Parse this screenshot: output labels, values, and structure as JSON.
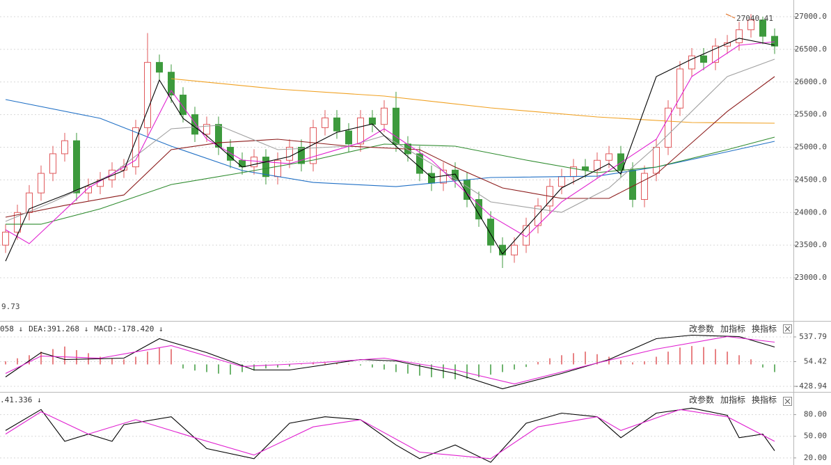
{
  "chart_data": [
    {
      "type": "candlestick",
      "up_color": "#e0585b",
      "down_color": "#3d9a3d",
      "ylim": [
        22350,
        27256
      ],
      "yticks": [
        {
          "value": 27000,
          "label": "27000.0"
        },
        {
          "value": 26500,
          "label": "26500.0"
        },
        {
          "value": 26000,
          "label": "26000.0"
        },
        {
          "value": 25500,
          "label": "25500.0"
        },
        {
          "value": 25000,
          "label": "25000.0"
        },
        {
          "value": 24500,
          "label": "24500.0"
        },
        {
          "value": 24000,
          "label": "24000.0"
        },
        {
          "value": 23500,
          "label": "23500.0"
        },
        {
          "value": 23000,
          "label": "23000.0"
        }
      ],
      "grid": true,
      "open": [
        23500,
        23700,
        24000,
        24300,
        24600,
        24900,
        25100,
        24300,
        24400,
        24500,
        24650,
        24700,
        25300,
        26300,
        26150,
        25800,
        25500,
        25200,
        25350,
        25000,
        24800,
        24700,
        24850,
        24550,
        24800,
        25000,
        24750,
        25300,
        25450,
        25250,
        25050,
        25450,
        25350,
        25600,
        25050,
        24900,
        24600,
        24450,
        24650,
        24500,
        24200,
        23900,
        23500,
        23350,
        23500,
        23800,
        24100,
        24400,
        24550,
        24700,
        24650,
        24800,
        24900,
        24650,
        24200,
        24600,
        25000,
        25600,
        26200,
        26400,
        26300,
        26550,
        26600,
        26800,
        26950,
        26700
      ],
      "high": [
        23820,
        24120,
        24420,
        24720,
        25020,
        25220,
        25220,
        24520,
        24620,
        24770,
        24820,
        25420,
        26750,
        26420,
        26270,
        25920,
        25620,
        25470,
        25470,
        25120,
        24920,
        24970,
        24970,
        24920,
        25120,
        25120,
        25420,
        25570,
        25570,
        25370,
        25570,
        25570,
        25720,
        25850,
        25170,
        25020,
        24720,
        24770,
        24770,
        24620,
        24320,
        24020,
        23620,
        23620,
        23920,
        24220,
        24520,
        24670,
        24820,
        24820,
        24920,
        25020,
        25020,
        24770,
        24720,
        25120,
        25720,
        26320,
        26520,
        26520,
        26670,
        26720,
        26920,
        27040.41,
        27000,
        26820
      ],
      "low": [
        23380,
        23580,
        23880,
        24180,
        24480,
        24780,
        24180,
        24180,
        24280,
        24380,
        24530,
        24580,
        25180,
        26030,
        25680,
        25380,
        25080,
        25080,
        24880,
        24680,
        24580,
        24580,
        24430,
        24430,
        24680,
        24630,
        24630,
        25180,
        25130,
        24930,
        24930,
        25230,
        25230,
        24930,
        24780,
        24480,
        24330,
        24330,
        24380,
        24080,
        23780,
        23380,
        23150,
        23230,
        23380,
        23680,
        23980,
        24280,
        24430,
        24530,
        24530,
        24680,
        24530,
        24080,
        24080,
        24480,
        24880,
        25480,
        26080,
        26180,
        26180,
        26430,
        26480,
        26680,
        26580,
        26430
      ],
      "close": [
        23700,
        24000,
        24300,
        24600,
        24900,
        25100,
        24300,
        24400,
        24500,
        24650,
        24700,
        25300,
        26300,
        26150,
        25800,
        25500,
        25200,
        25350,
        25000,
        24800,
        24700,
        24850,
        24550,
        24800,
        25000,
        24750,
        25300,
        25450,
        25250,
        25050,
        25450,
        25350,
        25600,
        25050,
        24900,
        24600,
        24450,
        24650,
        24500,
        24200,
        23900,
        23500,
        23350,
        23500,
        23800,
        24100,
        24400,
        24550,
        24700,
        24650,
        24800,
        24900,
        24650,
        24200,
        24600,
        25000,
        25600,
        26200,
        26400,
        26300,
        26550,
        26600,
        26800,
        26950,
        26700,
        26550
      ],
      "lines": [
        {
          "color": "#1f6fc5",
          "x": [
            0,
            8,
            14,
            20,
            26,
            33,
            41,
            50,
            55,
            61,
            65
          ],
          "values": [
            25731,
            25443,
            25016,
            24643,
            24461,
            24397,
            24536,
            24557,
            24696,
            24931,
            25091
          ]
        },
        {
          "color": "#f0a020",
          "x": [
            14,
            23,
            32,
            41,
            50,
            58,
            65
          ],
          "values": [
            26051,
            25891,
            25784,
            25603,
            25464,
            25379,
            25368
          ]
        },
        {
          "color": "#2e8b2e",
          "x": [
            0,
            3,
            8,
            14,
            20,
            26,
            32,
            38,
            44,
            50,
            55,
            61,
            65
          ],
          "values": [
            23821,
            23821,
            24056,
            24429,
            24611,
            24803,
            25048,
            25016,
            24803,
            24611,
            24696,
            24963,
            25155
          ]
        },
        {
          "color": "#8b1a1a",
          "x": [
            0,
            5,
            10,
            14,
            18,
            23,
            29,
            35,
            38,
            42,
            47,
            51,
            55,
            61,
            65
          ],
          "values": [
            23928,
            24109,
            24269,
            24963,
            25069,
            25123,
            25016,
            24963,
            24696,
            24376,
            24216,
            24216,
            24589,
            25549,
            26083
          ]
        },
        {
          "color": "#a0a0a0",
          "x": [
            0,
            4,
            9,
            14,
            18,
            23,
            29,
            32,
            36,
            41,
            47,
            51,
            55,
            61,
            65
          ],
          "values": [
            23864,
            24163,
            24589,
            25283,
            25336,
            24963,
            25016,
            25176,
            24749,
            24163,
            24003,
            24376,
            25016,
            26083,
            26349
          ]
        },
        {
          "color": "#e020d0",
          "x": [
            0,
            2,
            7,
            11,
            14,
            17,
            20,
            24,
            30,
            32,
            36,
            41,
            44,
            47,
            51,
            55,
            58,
            62,
            65
          ],
          "values": [
            23736,
            23523,
            24376,
            24803,
            25869,
            25123,
            24803,
            24749,
            25069,
            25283,
            24803,
            23949,
            23629,
            24163,
            24643,
            25123,
            26083,
            26563,
            26616
          ]
        },
        {
          "color": "#000000",
          "x": [
            0,
            2,
            5,
            10,
            13,
            15,
            17,
            20,
            24,
            28,
            31,
            32,
            36,
            38,
            42,
            47,
            51,
            52,
            55,
            58,
            62,
            65
          ],
          "values": [
            23256,
            24056,
            24269,
            24643,
            26029,
            25443,
            25176,
            24696,
            24856,
            25229,
            25357,
            25176,
            24536,
            24589,
            23363,
            24376,
            24749,
            24589,
            26083,
            26349,
            26669,
            26563
          ]
        }
      ],
      "annotations": [
        {
          "text": "27040.41",
          "color": "#e06a1a"
        },
        {
          "text": "9.73",
          "color": "#e06a1a"
        }
      ]
    },
    {
      "type": "macd",
      "up_color": "#e0585b",
      "down_color": "#3d9a3d",
      "ylim": [
        -524.3,
        823.8
      ],
      "yticks": [
        537.79,
        54.42,
        -428.94
      ],
      "grid": true,
      "legend": [
        {
          "text": "058 ↓",
          "color": "#000000"
        },
        {
          "text": "DEA:391.268 ↓",
          "color": "#e020d0"
        },
        {
          "text": "MACD:-178.420 ↓",
          "color": "#777777"
        }
      ],
      "buttons": [
        "改参数",
        "加指标",
        "换指标"
      ],
      "histogram": [
        60,
        120,
        180,
        250,
        300,
        350,
        280,
        220,
        150,
        120,
        100,
        150,
        250,
        330,
        300,
        -80,
        -120,
        -150,
        -180,
        -200,
        -150,
        -120,
        -80,
        -60,
        -40,
        20,
        40,
        30,
        20,
        10,
        -20,
        -60,
        -100,
        -150,
        -180,
        -220,
        -250,
        -270,
        -290,
        -280,
        -250,
        -200,
        -150,
        -100,
        -50,
        50,
        120,
        180,
        220,
        250,
        200,
        150,
        80,
        40,
        60,
        150,
        250,
        330,
        360,
        340,
        300,
        250,
        180,
        100,
        -60,
        -150
      ],
      "lines": [
        {
          "color": "#000000",
          "x": [
            0,
            3,
            5,
            10,
            13,
            17,
            21,
            24,
            30,
            33,
            38,
            42,
            47,
            51,
            55,
            58,
            62,
            65
          ],
          "values": [
            -245,
            231,
            95,
            123,
            504,
            231,
            -109,
            -109,
            95,
            68,
            -177,
            -477,
            -177,
            95,
            504,
            572,
            545,
            340
          ]
        },
        {
          "color": "#e020d0",
          "x": [
            0,
            3,
            8,
            14,
            20,
            26,
            32,
            38,
            43,
            50,
            55,
            61,
            65
          ],
          "values": [
            -177,
            163,
            123,
            368,
            -41,
            27,
            123,
            -109,
            -381,
            27,
            300,
            545,
            436
          ]
        }
      ]
    },
    {
      "type": "kdj",
      "ylim": [
        10.2,
        109.5
      ],
      "yticks": [
        {
          "value": 80,
          "label": "80.00"
        },
        {
          "value": 50,
          "label": "50.00"
        },
        {
          "value": 20,
          "label": "20.00"
        }
      ],
      "grid": true,
      "legend": [
        {
          "text": ".41.336 ↓",
          "color": "#e020d0"
        }
      ],
      "buttons": [
        "改参数",
        "加指标",
        "换指标"
      ],
      "lines": [
        {
          "color": "#000000",
          "x": [
            0,
            3,
            5,
            7,
            9,
            10,
            14,
            17,
            21,
            24,
            27,
            30,
            33,
            35,
            38,
            41,
            44,
            47,
            50,
            52,
            55,
            58,
            61,
            62,
            64,
            65
          ],
          "values": [
            58,
            87,
            43,
            53,
            43,
            66,
            77,
            33,
            19,
            68,
            77,
            73,
            38,
            19,
            38,
            14,
            68,
            82,
            77,
            48,
            82,
            89,
            79,
            48,
            53,
            30
          ]
        },
        {
          "color": "#e020d0",
          "x": [
            0,
            3,
            7,
            11,
            16,
            21,
            26,
            30,
            35,
            41,
            45,
            50,
            52,
            57,
            61,
            65
          ],
          "values": [
            53,
            84,
            53,
            73,
            48,
            24,
            63,
            73,
            28,
            19,
            63,
            77,
            58,
            87,
            77,
            43
          ]
        }
      ]
    }
  ]
}
